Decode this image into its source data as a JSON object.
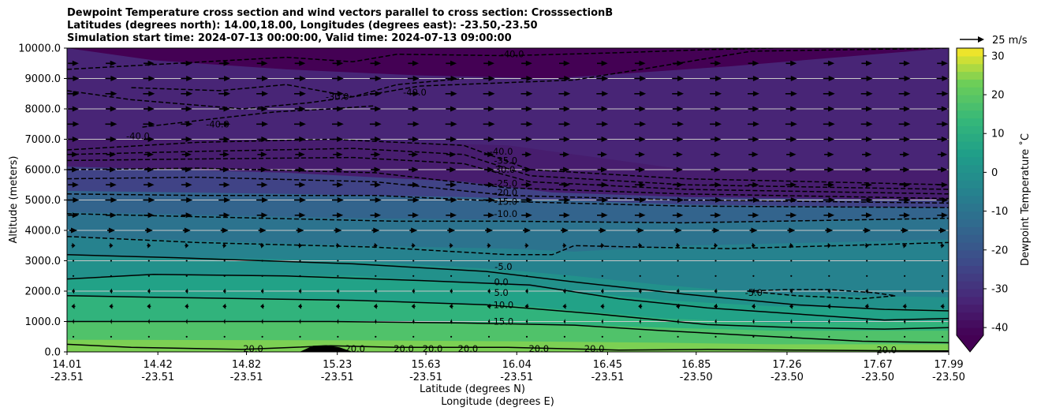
{
  "chart_data": {
    "type": "heatmap",
    "title_lines": [
      "Dewpoint Temperature cross section and wind vectors parallel to cross section: CrosssectionB",
      "Latitudes (degrees north): 14.00,18.00, Longitudes (degrees east): -23.50,-23.50",
      "Simulation start time: 2024-07-13 00:00:00, Valid time: 2024-07-13 09:00:00"
    ],
    "xlabel_lat": "Latitude (degrees N)",
    "xlabel_lon": "Longitude (degrees E)",
    "ylabel": "Altitude (meters)",
    "colorbar_label": "Dewpoint Temperature ˚C",
    "quiver_key_label": "25 m/s",
    "x_ticks": [
      {
        "lat": "14.01",
        "lon": "-23.51"
      },
      {
        "lat": "14.42",
        "lon": "-23.51"
      },
      {
        "lat": "14.82",
        "lon": "-23.51"
      },
      {
        "lat": "15.23",
        "lon": "-23.51"
      },
      {
        "lat": "15.63",
        "lon": "-23.51"
      },
      {
        "lat": "16.04",
        "lon": "-23.51"
      },
      {
        "lat": "16.45",
        "lon": "-23.51"
      },
      {
        "lat": "16.85",
        "lon": "-23.50"
      },
      {
        "lat": "17.26",
        "lon": "-23.50"
      },
      {
        "lat": "17.67",
        "lon": "-23.50"
      },
      {
        "lat": "17.99",
        "lon": "-23.50"
      }
    ],
    "y_ticks": [
      "0.0",
      "1000.0",
      "2000.0",
      "3000.0",
      "4000.0",
      "5000.0",
      "6000.0",
      "7000.0",
      "8000.0",
      "9000.0",
      "10000.0"
    ],
    "ylim": [
      0,
      10000
    ],
    "xlim_lat": [
      14.01,
      17.99
    ],
    "colorbar_ticks": [
      -40,
      -30,
      -20,
      -10,
      0,
      10,
      20,
      30
    ],
    "colorbar_range": [
      -42,
      32
    ],
    "colorbar_extend": "min",
    "colormap": "viridis",
    "grid": "horizontal",
    "bands": [
      {
        "lat": [
          14.01,
          15.3,
          16.0,
          16.7,
          17.2,
          17.99
        ],
        "top": [
          400,
          380,
          350,
          300,
          250,
          250
        ],
        "value": 24
      },
      {
        "lat": [
          14.01,
          15.3,
          16.0,
          16.7,
          17.2,
          17.99
        ],
        "top": [
          1000,
          1000,
          950,
          800,
          700,
          700
        ],
        "value": 18
      },
      {
        "lat": [
          14.01,
          15.3,
          16.0,
          16.7,
          17.2,
          17.99
        ],
        "top": [
          1850,
          1700,
          1550,
          1100,
          950,
          1000
        ],
        "value": 12
      },
      {
        "lat": [
          14.01,
          14.4,
          15.3,
          16.0,
          16.7,
          17.2,
          17.99
        ],
        "top": [
          2400,
          2550,
          2500,
          2200,
          1700,
          1500,
          1400
        ],
        "value": 6
      },
      {
        "lat": [
          14.01,
          15.3,
          16.0,
          16.3,
          16.7,
          17.2,
          17.99
        ],
        "top": [
          3200,
          3000,
          2700,
          2500,
          2200,
          1900,
          1800
        ],
        "value": 0
      },
      {
        "lat": [
          14.01,
          15.3,
          16.0,
          16.3,
          16.8,
          17.99
        ],
        "top": [
          3800,
          3500,
          3400,
          3300,
          3500,
          3700
        ],
        "value": -5
      },
      {
        "lat": [
          14.01,
          15.3,
          16.0,
          16.8,
          17.99
        ],
        "top": [
          4600,
          4400,
          4350,
          4250,
          4400
        ],
        "value": -10
      },
      {
        "lat": [
          14.01,
          15.0,
          15.8,
          16.2,
          16.8,
          17.99
        ],
        "top": [
          5300,
          5200,
          5100,
          5000,
          4850,
          4750
        ],
        "value": -15
      },
      {
        "lat": [
          14.01,
          15.0,
          15.8,
          16.2,
          16.8,
          17.99
        ],
        "top": [
          6100,
          5900,
          5600,
          5250,
          5100,
          5000
        ],
        "value": -25
      },
      {
        "lat": [
          14.01,
          15.0,
          16.0,
          16.5,
          16.8,
          17.99
        ],
        "top": [
          7000,
          7000,
          6800,
          6300,
          6000,
          6000
        ],
        "value": -35
      },
      {
        "lat": [
          14.01,
          14.4,
          15.0,
          15.6,
          16.2,
          17.0,
          17.99
        ],
        "top": [
          10000,
          9600,
          9300,
          9100,
          9000,
          9400,
          10000
        ],
        "value": -33
      }
    ],
    "contours": [
      {
        "value": "20.0",
        "style": "solid",
        "lat": [
          14.01,
          14.3,
          14.8,
          15.2,
          15.5,
          16.0,
          16.5,
          16.9,
          17.3,
          17.7,
          17.99
        ],
        "alt": [
          250,
          150,
          80,
          200,
          150,
          150,
          60,
          80,
          60,
          40,
          30
        ]
      },
      {
        "value": "15.0",
        "style": "solid",
        "lat": [
          14.01,
          14.5,
          15.2,
          15.8,
          16.3,
          16.7,
          17.2,
          17.6,
          17.99
        ],
        "alt": [
          1000,
          1000,
          1000,
          950,
          880,
          700,
          500,
          350,
          300
        ]
      },
      {
        "value": "10.0",
        "style": "solid",
        "lat": [
          14.01,
          14.4,
          15.3,
          15.9,
          16.4,
          16.9,
          17.3,
          17.7,
          17.99
        ],
        "alt": [
          1850,
          1800,
          1700,
          1550,
          1250,
          900,
          800,
          750,
          800
        ]
      },
      {
        "value": "5.0",
        "style": "solid",
        "lat": [
          14.01,
          14.4,
          15.0,
          15.6,
          16.1,
          16.5,
          16.9,
          17.3,
          17.7,
          17.99
        ],
        "alt": [
          2400,
          2550,
          2500,
          2350,
          2200,
          1750,
          1450,
          1250,
          1050,
          1100
        ]
      },
      {
        "value": "0.0",
        "style": "solid",
        "lat": [
          14.01,
          14.5,
          15.3,
          15.9,
          16.3,
          16.8,
          17.3,
          17.7,
          17.99
        ],
        "alt": [
          3200,
          3100,
          2900,
          2650,
          2300,
          1900,
          1550,
          1400,
          1350
        ]
      },
      {
        "value": "-5.0",
        "style": "dashed",
        "lat": [
          14.01,
          14.6,
          15.4,
          16.0,
          16.2,
          16.3,
          16.6,
          17.0,
          17.5,
          17.99
        ],
        "alt": [
          3800,
          3600,
          3450,
          3200,
          3200,
          3500,
          3450,
          3400,
          3500,
          3600
        ]
      },
      {
        "value": "-5.0",
        "style": "dashed",
        "lat": [
          17.08,
          17.25,
          17.45,
          17.65,
          17.75,
          17.6,
          17.3,
          17.08
        ],
        "alt": [
          2000,
          2050,
          2050,
          1950,
          1850,
          1750,
          1850,
          2000
        ]
      },
      {
        "value": "-10.0",
        "style": "dashed",
        "lat": [
          14.01,
          14.6,
          15.5,
          16.0,
          16.8,
          17.99
        ],
        "alt": [
          4550,
          4450,
          4300,
          4300,
          4250,
          4400
        ]
      },
      {
        "value": "-15.0",
        "style": "dashed",
        "lat": [
          14.01,
          14.6,
          15.4,
          16.0,
          16.8,
          17.99
        ],
        "alt": [
          5200,
          5150,
          5150,
          4950,
          4800,
          4750
        ]
      },
      {
        "value": "-20.0",
        "style": "dashed",
        "lat": [
          14.01,
          14.6,
          15.4,
          16.0,
          16.8,
          17.99
        ],
        "alt": [
          5700,
          5750,
          5600,
          5150,
          5000,
          4900
        ]
      },
      {
        "value": "-25.0",
        "style": "dashed",
        "lat": [
          14.01,
          14.6,
          15.4,
          16.0,
          16.8,
          17.99
        ],
        "alt": [
          6000,
          6050,
          5900,
          5400,
          5200,
          5050
        ]
      },
      {
        "value": "-30.0",
        "style": "dashed",
        "lat": [
          14.01,
          14.6,
          15.3,
          15.8,
          16.1,
          16.8,
          17.99
        ],
        "alt": [
          6300,
          6350,
          6400,
          6200,
          5600,
          5350,
          5200
        ]
      },
      {
        "value": "-35.0",
        "style": "dashed",
        "lat": [
          14.01,
          14.6,
          15.3,
          15.8,
          16.1,
          16.8,
          17.99
        ],
        "alt": [
          6500,
          6600,
          6700,
          6500,
          5800,
          5500,
          5350
        ]
      },
      {
        "value": "-40.0",
        "style": "dashed",
        "lat": [
          14.01,
          14.6,
          15.2,
          15.8,
          16.1,
          16.8,
          17.99
        ],
        "alt": [
          6650,
          6900,
          7000,
          6800,
          6000,
          5700,
          5500
        ]
      },
      {
        "value": "-40.0",
        "style": "dashed",
        "lat": [
          14.01,
          14.3,
          14.8,
          15.1,
          15.4,
          15.6,
          16.3,
          16.6,
          17.1,
          17.99
        ],
        "alt": [
          8600,
          8300,
          8000,
          8200,
          8500,
          8750,
          8950,
          9300,
          9900,
          10000
        ]
      },
      {
        "value": "-30.0",
        "style": "dashed",
        "lat": [
          14.01,
          14.5,
          15.0,
          15.3,
          15.5,
          16.0,
          16.5,
          16.9,
          17.2
        ],
        "alt": [
          9300,
          9500,
          9700,
          9550,
          9800,
          9750,
          9850,
          9950,
          10000
        ]
      },
      {
        "value": "-40.0",
        "style": "dashed",
        "lat": [
          14.3,
          14.7,
          15.0,
          15.3,
          15.5,
          15.8
        ],
        "alt": [
          8700,
          8600,
          8800,
          8400,
          8800,
          9000
        ]
      },
      {
        "value": "-40.0",
        "style": "dashed",
        "lat": [
          14.35,
          14.7,
          14.95,
          15.2,
          15.4
        ],
        "alt": [
          7400,
          7700,
          7900,
          8000,
          8100
        ]
      }
    ],
    "contour_labels": [
      {
        "text": "-40.0",
        "lat": 16.02,
        "alt": 9800
      },
      {
        "text": "-40.0",
        "lat": 15.58,
        "alt": 8550
      },
      {
        "text": "-30.0",
        "lat": 15.23,
        "alt": 8400
      },
      {
        "text": "-40.0",
        "lat": 14.33,
        "alt": 7100
      },
      {
        "text": "-40.0",
        "lat": 14.69,
        "alt": 7500
      },
      {
        "text": "-40.0",
        "lat": 15.97,
        "alt": 6600
      },
      {
        "text": "-35.0",
        "lat": 15.99,
        "alt": 6300
      },
      {
        "text": "-30.0",
        "lat": 15.98,
        "alt": 6000
      },
      {
        "text": "-25.0",
        "lat": 15.99,
        "alt": 5550
      },
      {
        "text": "-20.0",
        "lat": 15.99,
        "alt": 5250
      },
      {
        "text": "-15.0",
        "lat": 15.99,
        "alt": 4950
      },
      {
        "text": "-10.0",
        "lat": 15.99,
        "alt": 4550
      },
      {
        "text": "-5.0",
        "lat": 15.98,
        "alt": 2800
      },
      {
        "text": "0.0",
        "lat": 15.97,
        "alt": 2300
      },
      {
        "text": "5.0",
        "lat": 15.97,
        "alt": 1950
      },
      {
        "text": "10.0",
        "lat": 15.98,
        "alt": 1550
      },
      {
        "text": "15.0",
        "lat": 15.98,
        "alt": 1000
      },
      {
        "text": "-5.0",
        "lat": 17.11,
        "alt": 1950
      },
      {
        "text": "20.0",
        "lat": 14.85,
        "alt": 100
      },
      {
        "text": "20.0",
        "lat": 15.31,
        "alt": 100
      },
      {
        "text": "20.0",
        "lat": 15.53,
        "alt": 100
      },
      {
        "text": "20.0",
        "lat": 15.66,
        "alt": 100
      },
      {
        "text": "20.0",
        "lat": 15.82,
        "alt": 100
      },
      {
        "text": "20.0",
        "lat": 16.14,
        "alt": 100
      },
      {
        "text": "20.0",
        "lat": 16.39,
        "alt": 100
      },
      {
        "text": "20.0",
        "lat": 17.71,
        "alt": 60
      }
    ],
    "terrain": {
      "lat": [
        15.06,
        15.12,
        15.18,
        15.24,
        15.3
      ],
      "alt": [
        0,
        200,
        220,
        150,
        0
      ]
    },
    "wind": {
      "lat_count": 24,
      "alt_levels": [
        500,
        1000,
        1500,
        2000,
        2500,
        3000,
        3500,
        4000,
        4500,
        5000,
        5500,
        6000,
        6500,
        7000,
        7500,
        8000,
        8500,
        9000,
        9500
      ],
      "u_ms": [
        -0.5,
        -2,
        -4,
        -3,
        -1,
        1,
        4,
        8,
        11,
        12,
        11,
        10,
        10,
        11,
        12,
        11,
        12,
        12,
        11
      ]
    }
  }
}
